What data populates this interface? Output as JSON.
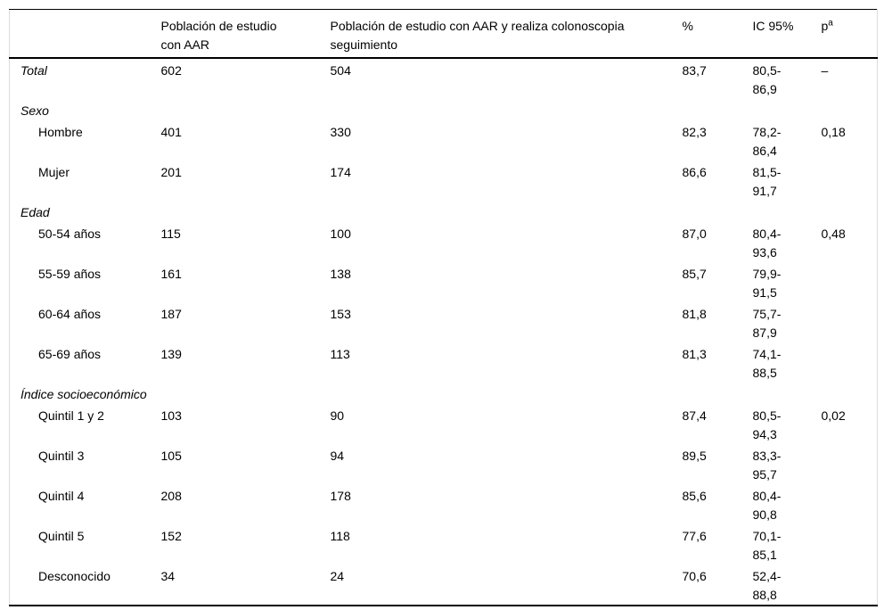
{
  "table": {
    "columns": {
      "label": "",
      "pop_aar": "Población de estudio con AAR",
      "pop_colono": "Población de estudio con AAR y realiza colonoscopia seguimiento",
      "pct": "%",
      "ic": "IC 95%",
      "p_base": "p",
      "p_sup": "a"
    },
    "rows": [
      {
        "type": "data",
        "indent": false,
        "italic": true,
        "label": "Total",
        "pop_aar": "602",
        "pop_colono": "504",
        "pct": "83,7",
        "ic1": "80,5-",
        "ic2": "86,9",
        "p": "–"
      },
      {
        "type": "section",
        "label": "Sexo"
      },
      {
        "type": "data",
        "indent": true,
        "italic": false,
        "label": "Hombre",
        "pop_aar": "401",
        "pop_colono": "330",
        "pct": "82,3",
        "ic1": "78,2-",
        "ic2": "86,4",
        "p": "0,18"
      },
      {
        "type": "data",
        "indent": true,
        "italic": false,
        "label": "Mujer",
        "pop_aar": "201",
        "pop_colono": "174",
        "pct": "86,6",
        "ic1": "81,5-",
        "ic2": "91,7",
        "p": ""
      },
      {
        "type": "section",
        "label": "Edad"
      },
      {
        "type": "data",
        "indent": true,
        "italic": false,
        "label": "50-54 años",
        "pop_aar": "115",
        "pop_colono": "100",
        "pct": "87,0",
        "ic1": "80,4-",
        "ic2": "93,6",
        "p": "0,48"
      },
      {
        "type": "data",
        "indent": true,
        "italic": false,
        "label": "55-59 años",
        "pop_aar": "161",
        "pop_colono": "138",
        "pct": "85,7",
        "ic1": "79,9-",
        "ic2": "91,5",
        "p": ""
      },
      {
        "type": "data",
        "indent": true,
        "italic": false,
        "label": "60-64 años",
        "pop_aar": "187",
        "pop_colono": "153",
        "pct": "81,8",
        "ic1": "75,7-",
        "ic2": "87,9",
        "p": ""
      },
      {
        "type": "data",
        "indent": true,
        "italic": false,
        "label": "65-69 años",
        "pop_aar": "139",
        "pop_colono": "113",
        "pct": "81,3",
        "ic1": "74,1-",
        "ic2": "88,5",
        "p": ""
      },
      {
        "type": "section",
        "label": "Índice socioeconómico"
      },
      {
        "type": "data",
        "indent": true,
        "italic": false,
        "label": "Quintil 1 y 2",
        "pop_aar": "103",
        "pop_colono": "90",
        "pct": "87,4",
        "ic1": "80,5-",
        "ic2": "94,3",
        "p": "0,02"
      },
      {
        "type": "data",
        "indent": true,
        "italic": false,
        "label": "Quintil 3",
        "pop_aar": "105",
        "pop_colono": "94",
        "pct": "89,5",
        "ic1": "83,3-",
        "ic2": "95,7",
        "p": ""
      },
      {
        "type": "data",
        "indent": true,
        "italic": false,
        "label": "Quintil 4",
        "pop_aar": "208",
        "pop_colono": "178",
        "pct": "85,6",
        "ic1": "80,4-",
        "ic2": "90,8",
        "p": ""
      },
      {
        "type": "data",
        "indent": true,
        "italic": false,
        "label": "Quintil 5",
        "pop_aar": "152",
        "pop_colono": "118",
        "pct": "77,6",
        "ic1": "70,1-",
        "ic2": "85,1",
        "p": ""
      },
      {
        "type": "data",
        "indent": true,
        "italic": false,
        "label": "Desconocido",
        "pop_aar": "34",
        "pop_colono": "24",
        "pct": "70,6",
        "ic1": "52,4-",
        "ic2": "88,8",
        "p": ""
      }
    ]
  }
}
